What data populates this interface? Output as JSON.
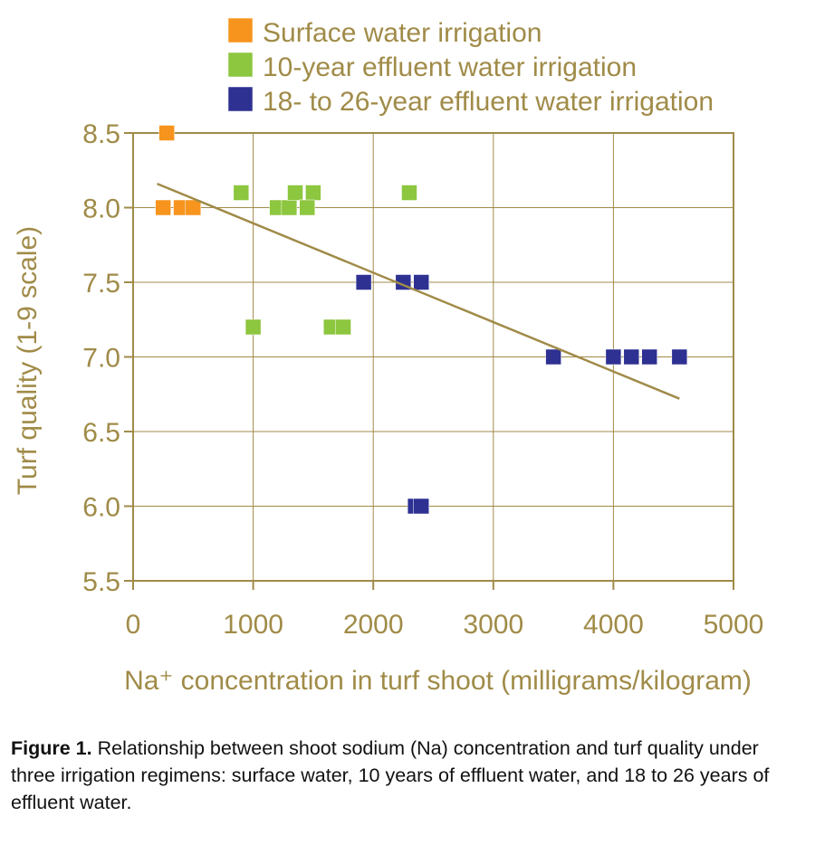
{
  "chart_data": {
    "type": "scatter",
    "title": "",
    "xlabel": "Na⁺ concentration in turf shoot (milligrams/kilogram)",
    "ylabel": "Turf quality (1-9 scale)",
    "xlim": [
      0,
      5000
    ],
    "ylim": [
      5.5,
      8.5
    ],
    "x_ticks": [
      0,
      1000,
      2000,
      3000,
      4000,
      5000
    ],
    "y_ticks": [
      5.5,
      6.0,
      6.5,
      7.0,
      7.5,
      8.0,
      8.5
    ],
    "grid": true,
    "legend_position": "top",
    "series": [
      {
        "name": "Surface water irrigation",
        "color": "#F7941D",
        "x": [
          280,
          250,
          400,
          500
        ],
        "y": [
          8.5,
          8.0,
          8.0,
          8.0
        ]
      },
      {
        "name": "10-year effluent water irrigation",
        "color": "#8DC63F",
        "x": [
          900,
          1000,
          1200,
          1300,
          1350,
          1450,
          1500,
          1650,
          1750,
          2300,
          1450
        ],
        "y": [
          8.1,
          7.2,
          8.0,
          8.0,
          8.1,
          8.0,
          8.1,
          7.2,
          7.2,
          8.1,
          8.0
        ]
      },
      {
        "name": "18- to 26-year effluent water irrigation",
        "color": "#2E3192",
        "x": [
          1920,
          2250,
          2400,
          3500,
          4000,
          4150,
          4300,
          4550,
          2350,
          2400
        ],
        "y": [
          7.5,
          7.5,
          7.5,
          7.0,
          7.0,
          7.0,
          7.0,
          7.0,
          6.0,
          6.0
        ]
      }
    ],
    "trendline": {
      "x": [
        200,
        4550
      ],
      "y": [
        8.16,
        6.72
      ],
      "color": "#A08B48"
    }
  },
  "caption": {
    "label": "Figure 1.",
    "text": " Relationship between shoot sodium (Na) concentration and turf quality under three irrigation regimens: surface water, 10 years of effluent water, and 18 to 26 years of effluent water."
  }
}
